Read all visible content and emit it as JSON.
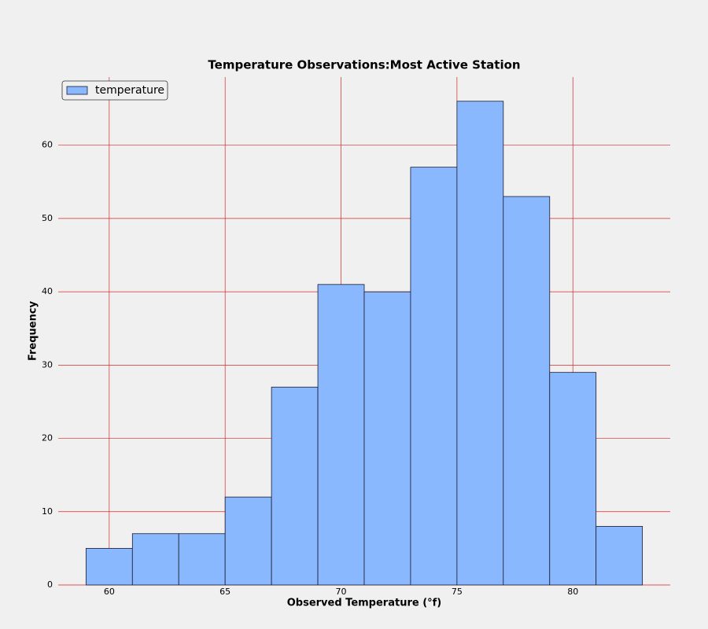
{
  "chart_data": {
    "type": "histogram",
    "title": "Temperature Observations:Most Active Station",
    "xlabel": "Observed Temperature (°f)",
    "ylabel": "Frequency",
    "bins": [
      59,
      61,
      63,
      65,
      67,
      69,
      71,
      73,
      75,
      77,
      79,
      81,
      83
    ],
    "series": [
      {
        "name": "temperature",
        "color": "#8ab8fe",
        "values": [
          5,
          7,
          7,
          12,
          27,
          41,
          40,
          57,
          66,
          53,
          29,
          8
        ]
      }
    ],
    "xlim": [
      57.8,
      84.2
    ],
    "xticks": [
      60,
      65,
      70,
      75,
      80
    ],
    "ylim": [
      0,
      69.3
    ],
    "yticks": [
      0,
      10,
      20,
      30,
      40,
      50,
      60
    ],
    "grid": true,
    "grid_color": "#d62728",
    "legend": "upper left"
  }
}
